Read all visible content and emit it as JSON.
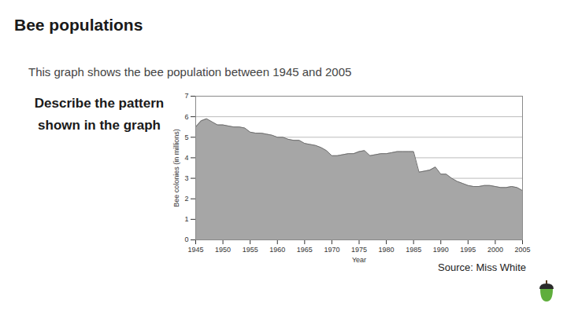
{
  "page": {
    "title": "Bee populations",
    "subtitle": "This graph shows the bee population between 1945 and 2005",
    "question": "Describe the pattern shown in the graph",
    "source": "Source: Miss White"
  },
  "chart_data": {
    "type": "area",
    "x_label": "Year",
    "y_label": "Bee colonies (in millions)",
    "x": [
      1945,
      1946,
      1947,
      1948,
      1949,
      1950,
      1951,
      1952,
      1953,
      1954,
      1955,
      1956,
      1957,
      1958,
      1959,
      1960,
      1961,
      1962,
      1963,
      1964,
      1965,
      1966,
      1967,
      1968,
      1969,
      1970,
      1971,
      1972,
      1973,
      1974,
      1975,
      1976,
      1977,
      1978,
      1979,
      1980,
      1981,
      1982,
      1983,
      1984,
      1985,
      1986,
      1987,
      1988,
      1989,
      1990,
      1991,
      1992,
      1993,
      1994,
      1995,
      1996,
      1997,
      1998,
      1999,
      2000,
      2001,
      2002,
      2003,
      2004,
      2005
    ],
    "values": [
      5.5,
      5.8,
      5.9,
      5.75,
      5.6,
      5.6,
      5.55,
      5.5,
      5.5,
      5.45,
      5.25,
      5.2,
      5.2,
      5.15,
      5.1,
      5.0,
      5.0,
      4.9,
      4.85,
      4.85,
      4.7,
      4.65,
      4.6,
      4.5,
      4.35,
      4.1,
      4.1,
      4.15,
      4.2,
      4.2,
      4.3,
      4.35,
      4.1,
      4.15,
      4.2,
      4.2,
      4.25,
      4.3,
      4.3,
      4.3,
      4.3,
      3.3,
      3.35,
      3.4,
      3.55,
      3.2,
      3.2,
      3.0,
      2.85,
      2.75,
      2.65,
      2.6,
      2.6,
      2.65,
      2.65,
      2.6,
      2.55,
      2.55,
      2.6,
      2.55,
      2.4
    ],
    "color": "#a6a6a6",
    "xlim": [
      1945,
      2005
    ],
    "xticks": [
      1945,
      1950,
      1955,
      1960,
      1965,
      1970,
      1975,
      1980,
      1985,
      1990,
      1995,
      2000,
      2005
    ],
    "ylim": [
      0,
      7
    ],
    "yticks": [
      0,
      1,
      2,
      3,
      4,
      5,
      6,
      7
    ],
    "grid": true
  }
}
